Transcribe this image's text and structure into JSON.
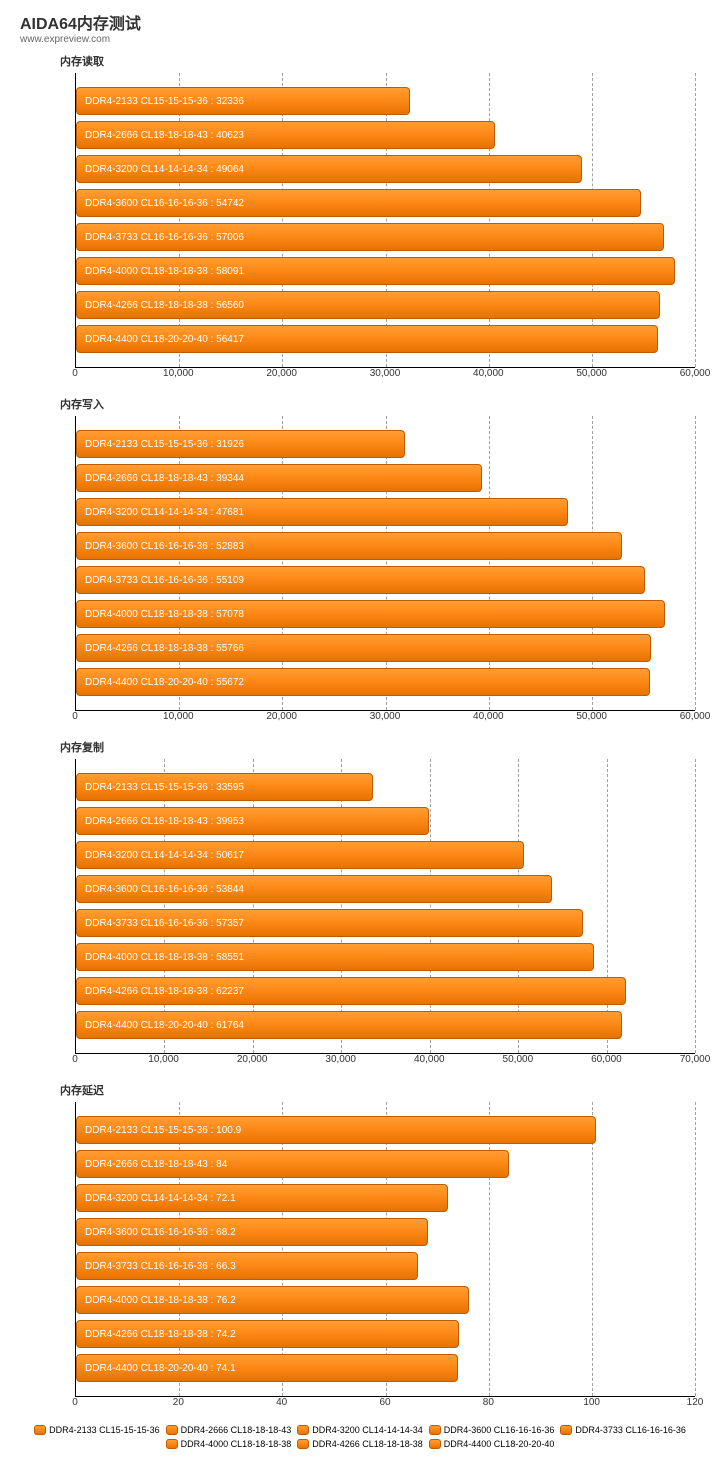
{
  "title": "AIDA64内存测试",
  "subtitle": "www.expreview.com",
  "bar_color_top": "#ff9d33",
  "bar_color_bottom": "#e67300",
  "bar_border_color": "#c05a00",
  "grid_color": "#a0a0a0",
  "axis_color": "#000000",
  "text_color": "#333333",
  "bar_label_color": "#ffffff",
  "series_labels": [
    "DDR4-2133 CL15-15-15-36",
    "DDR4-2666 CL18-18-18-43",
    "DDR4-3200 CL14-14-14-34",
    "DDR4-3600 CL16-16-16-36",
    "DDR4-3733 CL16-16-16-36",
    "DDR4-4000 CL18-18-18-38",
    "DDR4-4266 CL18-18-18-38",
    "DDR4-4400 CL18-20-20-40"
  ],
  "panels": [
    {
      "title": "内存读取",
      "xmax": 60000,
      "xtick_step": 10000,
      "tick_labels": [
        "0",
        "10,000",
        "20,000",
        "30,000",
        "40,000",
        "50,000",
        "60,000"
      ],
      "bars": [
        {
          "label": "DDR4-2133 CL15-15-15-36",
          "value": 32336
        },
        {
          "label": "DDR4-2666 CL18-18-18-43",
          "value": 40623
        },
        {
          "label": "DDR4-3200 CL14-14-14-34",
          "value": 49064
        },
        {
          "label": "DDR4-3600 CL16-16-16-36",
          "value": 54742
        },
        {
          "label": "DDR4-3733 CL16-16-16-36",
          "value": 57006
        },
        {
          "label": "DDR4-4000 CL18-18-18-38",
          "value": 58091
        },
        {
          "label": "DDR4-4266 CL18-18-18-38",
          "value": 56560
        },
        {
          "label": "DDR4-4400 CL18-20-20-40",
          "value": 56417
        }
      ]
    },
    {
      "title": "内存写入",
      "xmax": 60000,
      "xtick_step": 10000,
      "tick_labels": [
        "0",
        "10,000",
        "20,000",
        "30,000",
        "40,000",
        "50,000",
        "60,000"
      ],
      "bars": [
        {
          "label": "DDR4-2133 CL15-15-15-36",
          "value": 31926
        },
        {
          "label": "DDR4-2666 CL18-18-18-43",
          "value": 39344
        },
        {
          "label": "DDR4-3200 CL14-14-14-34",
          "value": 47681
        },
        {
          "label": "DDR4-3600 CL16-16-16-36",
          "value": 52883
        },
        {
          "label": "DDR4-3733 CL16-16-16-36",
          "value": 55109
        },
        {
          "label": "DDR4-4000 CL18-18-18-38",
          "value": 57078
        },
        {
          "label": "DDR4-4266 CL18-18-18-38",
          "value": 55766
        },
        {
          "label": "DDR4-4400 CL18-20-20-40",
          "value": 55672
        }
      ]
    },
    {
      "title": "内存复制",
      "xmax": 70000,
      "xtick_step": 10000,
      "tick_labels": [
        "0",
        "10,000",
        "20,000",
        "30,000",
        "40,000",
        "50,000",
        "60,000",
        "70,000"
      ],
      "bars": [
        {
          "label": "DDR4-2133 CL15-15-15-36",
          "value": 33595
        },
        {
          "label": "DDR4-2666 CL18-18-18-43",
          "value": 39953
        },
        {
          "label": "DDR4-3200 CL14-14-14-34",
          "value": 50617
        },
        {
          "label": "DDR4-3600 CL16-16-16-36",
          "value": 53844
        },
        {
          "label": "DDR4-3733 CL16-16-16-36",
          "value": 57357
        },
        {
          "label": "DDR4-4000 CL18-18-18-38",
          "value": 58551
        },
        {
          "label": "DDR4-4266 CL18-18-18-38",
          "value": 62237
        },
        {
          "label": "DDR4-4400 CL18-20-20-40",
          "value": 61764
        }
      ]
    },
    {
      "title": "内存延迟",
      "xmax": 120,
      "xtick_step": 20,
      "tick_labels": [
        "0",
        "20",
        "40",
        "60",
        "80",
        "100",
        "120"
      ],
      "bars": [
        {
          "label": "DDR4-2133 CL15-15-15-36",
          "value": 100.9
        },
        {
          "label": "DDR4-2666 CL18-18-18-43",
          "value": 84
        },
        {
          "label": "DDR4-3200 CL14-14-14-34",
          "value": 72.1
        },
        {
          "label": "DDR4-3600 CL16-16-16-36",
          "value": 68.2
        },
        {
          "label": "DDR4-3733 CL16-16-16-36",
          "value": 66.3
        },
        {
          "label": "DDR4-4000 CL18-18-18-38",
          "value": 76.2
        },
        {
          "label": "DDR4-4266 CL18-18-18-38",
          "value": 74.2
        },
        {
          "label": "DDR4-4400 CL18-20-20-40",
          "value": 74.1
        }
      ]
    }
  ]
}
